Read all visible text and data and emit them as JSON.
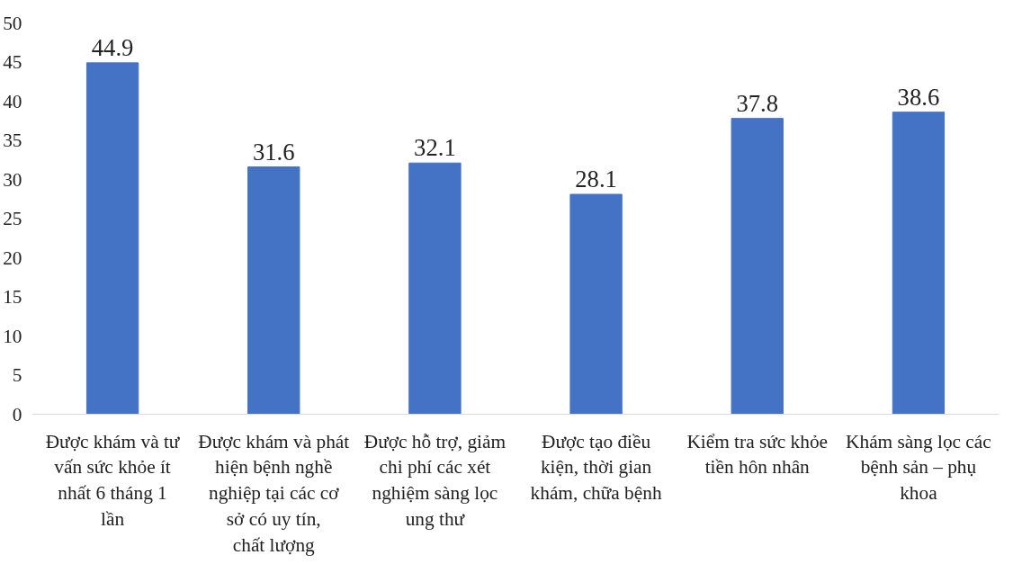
{
  "chart_data": {
    "type": "bar",
    "categories": [
      "Được khám và tư vấn sức khỏe ít nhất 6 tháng 1 lần",
      "Được khám và phát hiện bệnh nghề nghiệp tại các cơ sở có uy tín, chất lượng",
      "Được hỗ trợ, giảm chi phí các xét nghiệm sàng lọc ung thư",
      "Được tạo điều kiện, thời gian khám, chữa bệnh",
      "Kiểm tra sức khỏe tiền hôn nhân",
      "Khám sàng lọc các bệnh sản – phụ khoa"
    ],
    "values": [
      44.9,
      31.6,
      32.1,
      28.1,
      37.8,
      38.6
    ],
    "color": "#4472c4",
    "ylim": [
      0,
      50
    ],
    "yticks": [
      0,
      5,
      10,
      15,
      20,
      25,
      30,
      35,
      40,
      45,
      50
    ],
    "grid": false,
    "data_labels": true
  }
}
